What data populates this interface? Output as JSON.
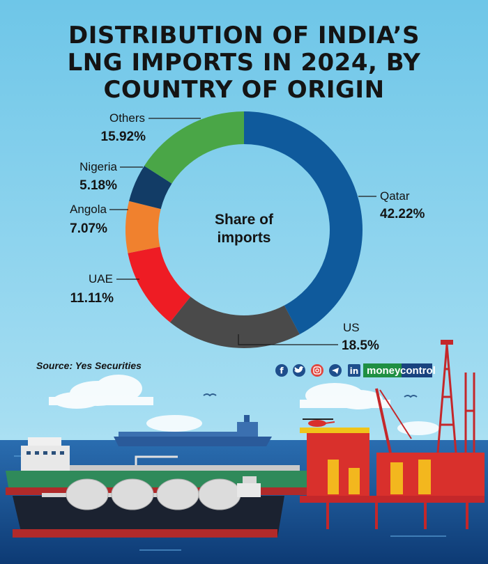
{
  "title_lines": [
    "DISTRIBUTION OF INDIA’S",
    "LNG IMPORTS IN 2024, BY",
    "COUNTRY OF ORIGIN"
  ],
  "source": "Source: Yes Securities",
  "brand": {
    "part1": "money",
    "part2": "control"
  },
  "social_icons": [
    "facebook-icon",
    "twitter-icon",
    "instagram-icon",
    "telegram-icon",
    "linkedin-icon"
  ],
  "chart_data": {
    "type": "pie",
    "title": "DISTRIBUTION OF INDIA’S LNG IMPORTS IN 2024, BY COUNTRY OF ORIGIN",
    "center_label": [
      "Share of",
      "imports"
    ],
    "unit": "%",
    "slices": [
      {
        "name": "Qatar",
        "value": 42.22,
        "label": "42.22%",
        "color": "#0f5a9c"
      },
      {
        "name": "US",
        "value": 18.5,
        "label": "18.5%",
        "color": "#4a4a4a"
      },
      {
        "name": "UAE",
        "value": 11.11,
        "label": "11.11%",
        "color": "#ee1c24"
      },
      {
        "name": "Angola",
        "value": 7.07,
        "label": "7.07%",
        "color": "#f0812e"
      },
      {
        "name": "Nigeria",
        "value": 5.18,
        "label": "5.18%",
        "color": "#123c66"
      },
      {
        "name": "Others",
        "value": 15.92,
        "label": "15.92%",
        "color": "#4aa647"
      }
    ]
  },
  "colors": {
    "background": "#8fd3ee",
    "sea": "#1a4f8c"
  }
}
